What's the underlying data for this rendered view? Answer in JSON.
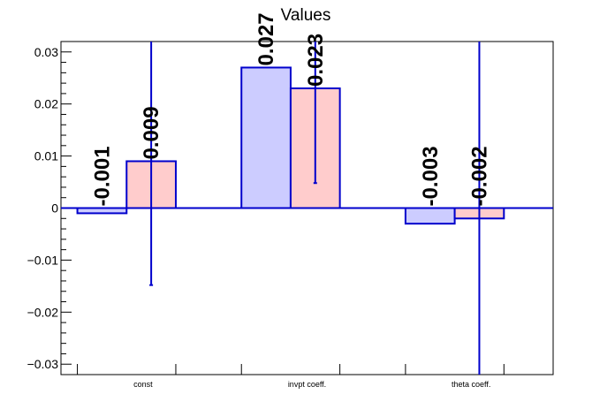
{
  "chart_data": {
    "type": "bar",
    "title": "Values",
    "xlabel": "",
    "ylabel": "",
    "categories": [
      "const",
      "invpt coeff.",
      "theta coeff."
    ],
    "ylim": [
      -0.032,
      0.032
    ],
    "yticks": [
      -0.03,
      -0.02,
      -0.01,
      0,
      0.01,
      0.02,
      0.03
    ],
    "ytick_labels": [
      "−0.03",
      "−0.02",
      "−0.01",
      "0",
      "0.01",
      "0.02",
      "0.03"
    ],
    "series": [
      {
        "values": [
          -0.001,
          0.027,
          -0.003
        ],
        "labels": [
          "-0.001",
          "0.027",
          "-0.003"
        ],
        "errors": [
          0,
          0,
          0
        ],
        "fill": "#ccccff",
        "edge": "#0000cc"
      },
      {
        "values": [
          0.009,
          0.023,
          -0.002
        ],
        "labels": [
          "0.009",
          "0.023",
          "-0.002"
        ],
        "errors": [
          0.0238,
          0.0182,
          0.035
        ],
        "fill": "#ffcccc",
        "edge": "#0000cc"
      }
    ],
    "grid": false,
    "legend": "none",
    "zero_line_color": "#0000cc"
  }
}
